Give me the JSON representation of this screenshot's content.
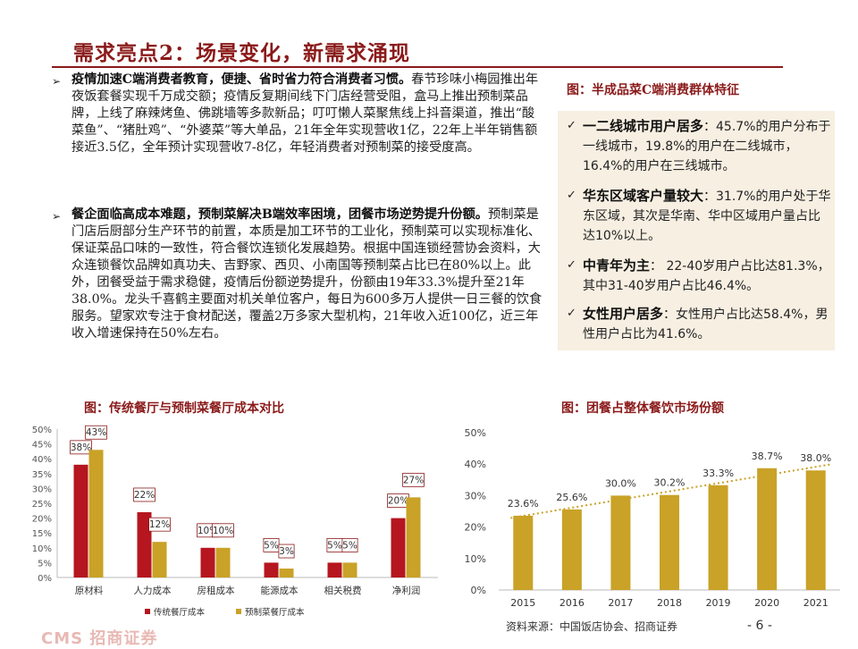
{
  "page": {
    "title": "需求亮点2：场景变化，新需求涌现",
    "page_number": "- 6 -",
    "logo_text": "CMS 招商证券"
  },
  "bullets": [
    {
      "heading": "疫情加速C端消费者教育，便捷、省时省力符合消费者习惯。",
      "body": "春节珍味小梅园推出年夜饭套餐实现千万成交额；疫情反复期间线下门店经营受阻，盒马上推出预制菜品牌，上线了麻辣烤鱼、佛跳墙等多款新品；叮叮懒人菜聚焦线上抖音渠道，推出“酸菜鱼”、“猪肚鸡”、“外婆菜”等大单品，21年全年实现营收1亿，22年上半年销售额接近3.5亿，全年预计实现营收7-8亿，年轻消费者对预制菜的接受度高。"
    },
    {
      "heading": "餐企面临高成本难题，预制菜解决B端效率困境，团餐市场逆势提升份额。",
      "body": "预制菜是门店后厨部分生产环节的前置，本质是加工环节的工业化，预制菜可以实现标准化、保证菜品口味的一致性，符合餐饮连锁化发展趋势。根据中国连锁经营协会资料，大众连锁餐饮品牌如真功夫、吉野家、西贝、小南国等预制菜占比已在80%以上。此外，团餐受益于需求稳健，疫情后份额逆势提升，份额由19年33.3%提升至21年38.0%。龙头千喜鹤主要面对机关单位客户，每日为600多万人提供一日三餐的饮食服务。望家欢专注于食材配送，覆盖2万多家大型机构，21年收入近100亿，近三年收入增速保持在50%左右。"
    }
  ],
  "panel": {
    "title": "图：半成品菜C端消费群体特征",
    "items": [
      {
        "heading": "一二线城市用户居多",
        "text": "：45.7%的用户分布于一线城市，19.8%的用户在二线城市，16.4%的用户在三线城市。"
      },
      {
        "heading": "华东区域客户量较大",
        "text": "：31.7%的用户处于华东区域，其次是华南、华中区域用户量占比达10%以上。"
      },
      {
        "heading": "中青年为主",
        "text": "： 22-40岁用户占比达81.3%，其中31-40岁用户占比46.4%。"
      },
      {
        "heading": "女性用户居多",
        "text": "：女性用户占比达58.4%，男性用户占比为41.6%。"
      }
    ]
  },
  "check_symbol": "✓",
  "bullet_symbol": "➢",
  "colors": {
    "red": "#b5161f",
    "gold": "#c9a227",
    "title": "#8b1a1a",
    "panel_bg": "#f7efe2"
  },
  "chart_data": [
    {
      "type": "bar",
      "title": "图：传统餐厅与预制菜餐厅成本对比",
      "categories": [
        "原材料",
        "人力成本",
        "房租成本",
        "能源成本",
        "相关税费",
        "净利润"
      ],
      "series": [
        {
          "name": "传统餐厅成本",
          "values": [
            38,
            22,
            10,
            5,
            5,
            20
          ],
          "labels": [
            "38%",
            "22%",
            "10%",
            "5%",
            "5%",
            "20%"
          ]
        },
        {
          "name": "预制菜餐厅成本",
          "values": [
            43,
            12,
            10,
            3,
            5,
            27
          ],
          "labels": [
            "43%",
            "12%",
            "10%",
            "3%",
            "5%",
            "27%"
          ]
        }
      ],
      "ylim": [
        0,
        50
      ],
      "yticks": [
        "0%",
        "5%",
        "10%",
        "15%",
        "20%",
        "25%",
        "30%",
        "35%",
        "40%",
        "45%",
        "50%"
      ],
      "legend": "bottom"
    },
    {
      "type": "bar",
      "title": "图：团餐占整体餐饮市场份额",
      "categories": [
        "2015",
        "2016",
        "2017",
        "2018",
        "2019",
        "2020",
        "2021"
      ],
      "values": [
        23.6,
        25.6,
        30.0,
        30.2,
        33.3,
        38.7,
        38.0
      ],
      "labels": [
        "23.6%",
        "25.6%",
        "30.0%",
        "30.2%",
        "33.3%",
        "38.7%",
        "38.0%"
      ],
      "ylim": [
        0,
        50
      ],
      "yticks": [
        "0%",
        "10%",
        "20%",
        "30%",
        "40%",
        "50%"
      ],
      "trendline": true
    }
  ],
  "source": "资料来源：中国饭店协会、招商证券"
}
